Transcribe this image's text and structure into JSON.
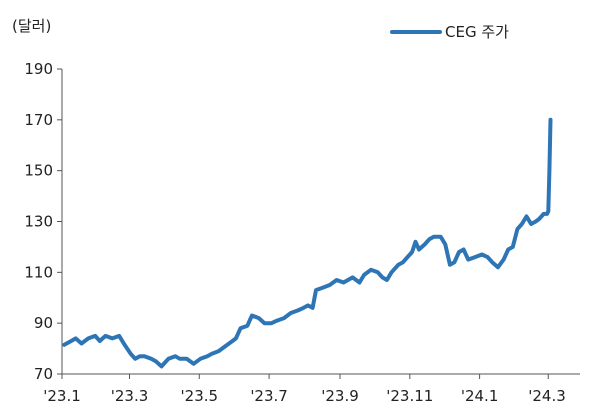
{
  "chart_data": {
    "type": "line",
    "title": "",
    "ylabel": "(달러)",
    "xlabel": "",
    "ylim": [
      70,
      190
    ],
    "yticks": [
      70,
      90,
      110,
      130,
      150,
      170,
      190
    ],
    "xlim": [
      "2023-01-01",
      "2024-03-20"
    ],
    "xticks": [
      {
        "date": "2023-01-01",
        "label": "'23.1"
      },
      {
        "date": "2023-03-01",
        "label": "'23.3"
      },
      {
        "date": "2023-05-01",
        "label": "'23.5"
      },
      {
        "date": "2023-07-01",
        "label": "'23.7"
      },
      {
        "date": "2023-09-01",
        "label": "'23.9"
      },
      {
        "date": "2023-11-01",
        "label": "'23.11"
      },
      {
        "date": "2024-01-01",
        "label": "'24.1"
      },
      {
        "date": "2024-03-01",
        "label": "'24.3"
      }
    ],
    "grid": false,
    "legend_position": "top-right",
    "series": [
      {
        "name": "CEG 주가",
        "color": "#2e75b6",
        "points": [
          [
            "2023-01-03",
            81.5
          ],
          [
            "2023-01-09",
            83
          ],
          [
            "2023-01-13",
            84
          ],
          [
            "2023-01-18",
            82
          ],
          [
            "2023-01-24",
            84
          ],
          [
            "2023-01-30",
            85
          ],
          [
            "2023-02-03",
            83
          ],
          [
            "2023-02-08",
            85
          ],
          [
            "2023-02-14",
            84
          ],
          [
            "2023-02-20",
            85
          ],
          [
            "2023-02-24",
            82
          ],
          [
            "2023-03-02",
            78
          ],
          [
            "2023-03-06",
            76
          ],
          [
            "2023-03-10",
            77
          ],
          [
            "2023-03-14",
            77
          ],
          [
            "2023-03-20",
            76
          ],
          [
            "2023-03-24",
            75
          ],
          [
            "2023-03-29",
            73
          ],
          [
            "2023-04-04",
            76
          ],
          [
            "2023-04-10",
            77
          ],
          [
            "2023-04-14",
            76
          ],
          [
            "2023-04-20",
            76
          ],
          [
            "2023-04-26",
            74
          ],
          [
            "2023-05-02",
            76
          ],
          [
            "2023-05-08",
            77
          ],
          [
            "2023-05-12",
            78
          ],
          [
            "2023-05-18",
            79
          ],
          [
            "2023-05-24",
            81
          ],
          [
            "2023-05-30",
            83
          ],
          [
            "2023-06-02",
            84
          ],
          [
            "2023-06-06",
            88
          ],
          [
            "2023-06-12",
            89
          ],
          [
            "2023-06-16",
            93
          ],
          [
            "2023-06-22",
            92
          ],
          [
            "2023-06-27",
            90
          ],
          [
            "2023-07-03",
            90
          ],
          [
            "2023-07-08",
            91
          ],
          [
            "2023-07-14",
            92
          ],
          [
            "2023-07-20",
            94
          ],
          [
            "2023-07-26",
            95
          ],
          [
            "2023-07-31",
            96
          ],
          [
            "2023-08-04",
            97
          ],
          [
            "2023-08-08",
            96
          ],
          [
            "2023-08-11",
            103
          ],
          [
            "2023-08-17",
            104
          ],
          [
            "2023-08-23",
            105
          ],
          [
            "2023-08-29",
            107
          ],
          [
            "2023-09-04",
            106
          ],
          [
            "2023-09-08",
            107
          ],
          [
            "2023-09-12",
            108
          ],
          [
            "2023-09-18",
            106
          ],
          [
            "2023-09-22",
            109
          ],
          [
            "2023-09-28",
            111
          ],
          [
            "2023-10-04",
            110
          ],
          [
            "2023-10-08",
            108
          ],
          [
            "2023-10-12",
            107
          ],
          [
            "2023-10-16",
            110
          ],
          [
            "2023-10-22",
            113
          ],
          [
            "2023-10-26",
            114
          ],
          [
            "2023-10-30",
            116
          ],
          [
            "2023-11-03",
            118
          ],
          [
            "2023-11-06",
            122
          ],
          [
            "2023-11-09",
            119
          ],
          [
            "2023-11-14",
            121
          ],
          [
            "2023-11-18",
            123
          ],
          [
            "2023-11-22",
            124
          ],
          [
            "2023-11-28",
            124
          ],
          [
            "2023-12-02",
            121
          ],
          [
            "2023-12-06",
            113
          ],
          [
            "2023-12-10",
            114
          ],
          [
            "2023-12-14",
            118
          ],
          [
            "2023-12-18",
            119
          ],
          [
            "2023-12-22",
            115
          ],
          [
            "2023-12-28",
            116
          ],
          [
            "2024-01-03",
            117
          ],
          [
            "2024-01-08",
            116
          ],
          [
            "2024-01-12",
            114
          ],
          [
            "2024-01-17",
            112
          ],
          [
            "2024-01-22",
            115
          ],
          [
            "2024-01-26",
            119
          ],
          [
            "2024-01-30",
            120
          ],
          [
            "2024-02-03",
            127
          ],
          [
            "2024-02-07",
            129
          ],
          [
            "2024-02-11",
            132
          ],
          [
            "2024-02-15",
            129
          ],
          [
            "2024-02-19",
            130
          ],
          [
            "2024-02-22",
            131
          ],
          [
            "2024-02-26",
            133
          ],
          [
            "2024-02-29",
            133
          ],
          [
            "2024-03-01",
            134
          ],
          [
            "2024-03-02",
            150
          ],
          [
            "2024-03-03",
            170
          ]
        ]
      }
    ]
  }
}
